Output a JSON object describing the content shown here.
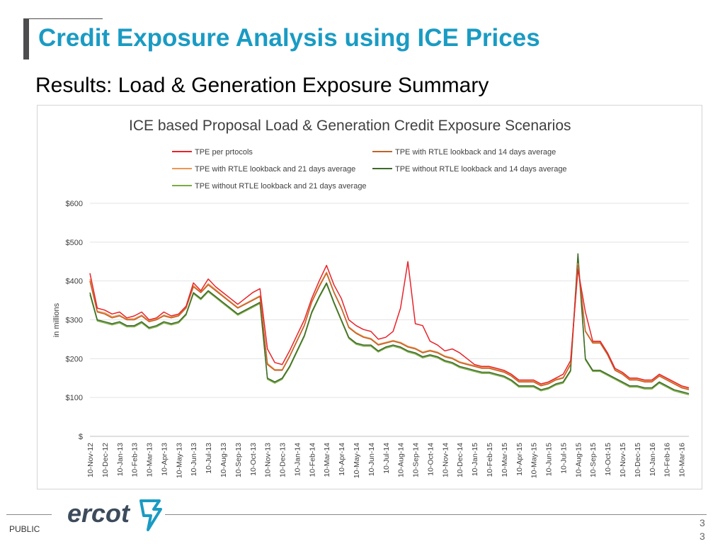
{
  "slide": {
    "title": "Credit Exposure Analysis using ICE Prices",
    "subtitle": "Results: Load & Generation Exposure Summary",
    "footer_label": "PUBLIC",
    "page_numbers": [
      "3",
      "3"
    ],
    "logo_text": "ercot",
    "colors": {
      "title": "#1a9bc3",
      "logo": "#3c4b5c",
      "logo_mark": "#1a9bc3"
    }
  },
  "chart_data": {
    "type": "line",
    "title": "ICE based Proposal Load & Generation Credit Exposure Scenarios",
    "ylabel": "in millions",
    "xlabel": "",
    "ylim": [
      0,
      600
    ],
    "yticks": [
      0,
      100,
      200,
      300,
      400,
      500,
      600
    ],
    "ytick_labels": [
      "$",
      "$100",
      "$200",
      "$300",
      "$400",
      "$500",
      "$600"
    ],
    "grid": true,
    "legend_position": "top",
    "x_tick_labels": [
      "10-Nov-12",
      "10-Dec-12",
      "10-Jan-13",
      "10-Feb-13",
      "10-Mar-13",
      "10-Apr-13",
      "10-May-13",
      "10-Jun-13",
      "10-Jul-13",
      "10-Aug-13",
      "10-Sep-13",
      "10-Oct-13",
      "10-Nov-13",
      "10-Dec-13",
      "10-Jan-14",
      "10-Feb-14",
      "10-Mar-14",
      "10-Apr-14",
      "10-May-14",
      "10-Jun-14",
      "10-Jul-14",
      "10-Aug-14",
      "10-Sep-14",
      "10-Oct-14",
      "10-Nov-14",
      "10-Dec-14",
      "10-Jan-15",
      "10-Feb-15",
      "10-Mar-15",
      "10-Apr-15",
      "10-May-15",
      "10-Jun-15",
      "10-Jul-15",
      "10-Aug-15",
      "10-Sep-15",
      "10-Oct-15",
      "10-Nov-15",
      "10-Dec-15",
      "10-Jan-16",
      "10-Feb-16",
      "10-Mar-16"
    ],
    "x": [
      "10-Nov-12",
      "25-Nov-12",
      "10-Dec-12",
      "25-Dec-12",
      "10-Jan-13",
      "25-Jan-13",
      "10-Feb-13",
      "25-Feb-13",
      "10-Mar-13",
      "25-Mar-13",
      "10-Apr-13",
      "25-Apr-13",
      "10-May-13",
      "25-May-13",
      "10-Jun-13",
      "25-Jun-13",
      "10-Jul-13",
      "25-Jul-13",
      "10-Aug-13",
      "25-Aug-13",
      "10-Sep-13",
      "25-Sep-13",
      "10-Oct-13",
      "25-Oct-13",
      "10-Nov-13",
      "25-Nov-13",
      "10-Dec-13",
      "25-Dec-13",
      "10-Jan-14",
      "25-Jan-14",
      "10-Feb-14",
      "25-Feb-14",
      "10-Mar-14",
      "25-Mar-14",
      "10-Apr-14",
      "25-Apr-14",
      "10-May-14",
      "25-May-14",
      "10-Jun-14",
      "25-Jun-14",
      "10-Jul-14",
      "25-Jul-14",
      "10-Aug-14",
      "25-Aug-14",
      "10-Sep-14",
      "25-Sep-14",
      "10-Oct-14",
      "25-Oct-14",
      "10-Nov-14",
      "25-Nov-14",
      "10-Dec-14",
      "25-Dec-14",
      "10-Jan-15",
      "25-Jan-15",
      "10-Feb-15",
      "25-Feb-15",
      "10-Mar-15",
      "25-Mar-15",
      "10-Apr-15",
      "25-Apr-15",
      "10-May-15",
      "25-May-15",
      "10-Jun-15",
      "25-Jun-15",
      "10-Jul-15",
      "25-Jul-15",
      "10-Aug-15",
      "25-Aug-15",
      "10-Sep-15",
      "25-Sep-15",
      "10-Oct-15",
      "25-Oct-15",
      "10-Nov-15",
      "25-Nov-15",
      "10-Dec-15",
      "25-Dec-15",
      "10-Jan-16",
      "25-Jan-16",
      "10-Feb-16",
      "25-Feb-16",
      "10-Mar-16",
      "25-Mar-16"
    ],
    "series": [
      {
        "name": "TPE per prtocols",
        "color": "#e8232a",
        "values": [
          420,
          330,
          325,
          315,
          320,
          305,
          310,
          320,
          300,
          305,
          320,
          310,
          315,
          335,
          395,
          375,
          405,
          385,
          370,
          355,
          340,
          355,
          370,
          380,
          225,
          190,
          185,
          220,
          260,
          300,
          355,
          400,
          440,
          390,
          355,
          300,
          285,
          275,
          270,
          250,
          255,
          270,
          330,
          450,
          290,
          285,
          245,
          235,
          220,
          225,
          215,
          200,
          185,
          180,
          180,
          175,
          170,
          160,
          145,
          145,
          145,
          135,
          140,
          150,
          160,
          195,
          430,
          320,
          245,
          245,
          215,
          175,
          165,
          150,
          150,
          145,
          145,
          160,
          150,
          140,
          130,
          125
        ]
      },
      {
        "name": "TPE with RTLE lookback and 14 days average",
        "color": "#c0632a",
        "values": [
          400,
          320,
          315,
          305,
          310,
          300,
          300,
          310,
          295,
          300,
          310,
          305,
          310,
          330,
          385,
          370,
          390,
          375,
          360,
          345,
          330,
          340,
          350,
          360,
          185,
          170,
          170,
          205,
          245,
          285,
          345,
          385,
          420,
          370,
          330,
          280,
          265,
          255,
          250,
          235,
          240,
          245,
          240,
          230,
          225,
          215,
          220,
          215,
          205,
          200,
          190,
          185,
          180,
          175,
          175,
          170,
          165,
          155,
          140,
          140,
          140,
          130,
          135,
          145,
          150,
          185,
          440,
          270,
          240,
          240,
          210,
          170,
          160,
          145,
          145,
          140,
          140,
          155,
          145,
          135,
          125,
          120
        ]
      },
      {
        "name": "TPE with RTLE lookback and 21 days average",
        "color": "#f0974f",
        "values": [
          405,
          322,
          318,
          308,
          312,
          302,
          303,
          312,
          297,
          302,
          312,
          307,
          312,
          332,
          388,
          372,
          393,
          378,
          362,
          347,
          332,
          342,
          352,
          362,
          188,
          172,
          172,
          207,
          247,
          287,
          347,
          388,
          423,
          372,
          332,
          282,
          267,
          257,
          252,
          237,
          242,
          247,
          242,
          232,
          227,
          217,
          222,
          217,
          207,
          202,
          192,
          187,
          182,
          177,
          177,
          172,
          167,
          157,
          142,
          142,
          142,
          132,
          137,
          147,
          152,
          187,
          445,
          272,
          242,
          242,
          212,
          172,
          162,
          147,
          147,
          142,
          142,
          157,
          147,
          137,
          127,
          122
        ]
      },
      {
        "name": "TPE without RTLE lookback and 14 days average",
        "color": "#3d6a28",
        "values": [
          370,
          300,
          295,
          290,
          295,
          285,
          285,
          295,
          280,
          285,
          295,
          290,
          295,
          315,
          370,
          355,
          375,
          360,
          345,
          330,
          315,
          325,
          335,
          345,
          150,
          140,
          150,
          180,
          220,
          260,
          320,
          360,
          395,
          345,
          300,
          255,
          240,
          235,
          235,
          220,
          230,
          235,
          230,
          220,
          215,
          205,
          210,
          205,
          195,
          190,
          180,
          175,
          170,
          165,
          165,
          160,
          155,
          145,
          130,
          130,
          130,
          120,
          125,
          135,
          140,
          170,
          470,
          200,
          170,
          170,
          160,
          150,
          140,
          130,
          130,
          125,
          125,
          140,
          130,
          120,
          115,
          110
        ]
      },
      {
        "name": "TPE without RTLE lookback and 21 days average",
        "color": "#7aac42",
        "values": [
          365,
          297,
          292,
          287,
          292,
          282,
          282,
          292,
          277,
          282,
          292,
          287,
          292,
          312,
          367,
          352,
          372,
          357,
          342,
          327,
          312,
          322,
          332,
          342,
          147,
          137,
          147,
          177,
          217,
          257,
          317,
          357,
          392,
          342,
          297,
          252,
          237,
          232,
          232,
          217,
          227,
          232,
          227,
          217,
          212,
          202,
          207,
          202,
          192,
          187,
          177,
          172,
          167,
          162,
          162,
          157,
          152,
          142,
          127,
          127,
          127,
          117,
          122,
          132,
          137,
          167,
          460,
          197,
          167,
          167,
          157,
          147,
          137,
          127,
          127,
          122,
          122,
          137,
          127,
          117,
          112,
          107
        ]
      }
    ]
  }
}
